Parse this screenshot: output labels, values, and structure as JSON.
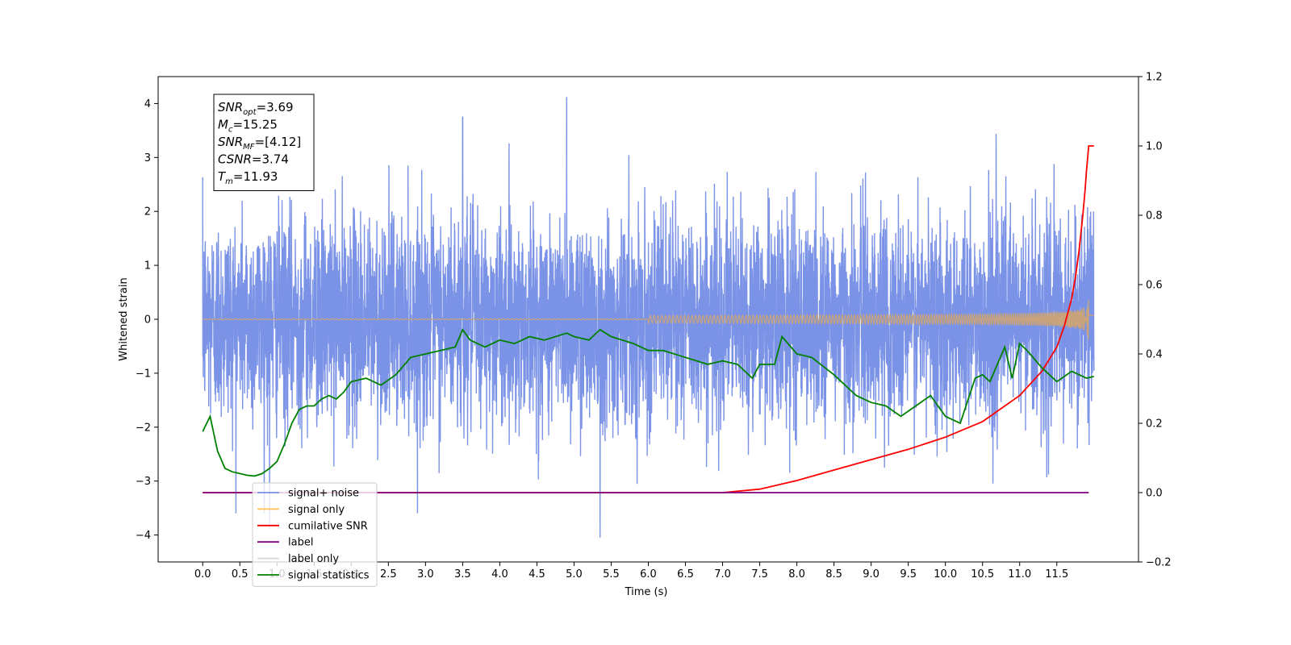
{
  "chart_data": {
    "type": "line",
    "xlabel": "Time (s)",
    "ylabel": "Whitened strain",
    "xlim": [
      -0.6,
      12.6
    ],
    "ylim": [
      -4.5,
      4.5
    ],
    "y2lim": [
      -0.2,
      1.2
    ],
    "xticks": [
      "0.0",
      "0.5",
      "1.0",
      "1.5",
      "2.0",
      "2.5",
      "3.0",
      "3.5",
      "4.0",
      "4.5",
      "5.0",
      "5.5",
      "6.0",
      "6.5",
      "7.0",
      "7.5",
      "8.0",
      "8.5",
      "9.0",
      "9.5",
      "10.0",
      "10.5",
      "11.0",
      "11.5"
    ],
    "yticks": [
      "−4",
      "−3",
      "−2",
      "−1",
      "0",
      "1",
      "2",
      "3",
      "4"
    ],
    "y2ticks": [
      "−0.2",
      "0.0",
      "0.2",
      "0.4",
      "0.6",
      "0.8",
      "1.0",
      "1.2"
    ],
    "grid": false,
    "legend_position": "lower-left",
    "annotation_box": [
      {
        "base": "SNR",
        "sub": "opt",
        "value": "=3.69"
      },
      {
        "base": "M",
        "sub": "c",
        "value": "=15.25"
      },
      {
        "base": "SNR",
        "sub": "MF",
        "value": "=[4.12]"
      },
      {
        "base": "CSNR",
        "sub": "",
        "value": "=3.74"
      },
      {
        "base": "T",
        "sub": "m",
        "value": "=11.93"
      }
    ],
    "series": [
      {
        "name": "signal+ noise",
        "color": "#7b93e6",
        "axis": "left",
        "x_range": [
          0,
          12.0
        ],
        "amplitude_typical": 2.0,
        "peaks": [
          [
            4.9,
            4.12
          ],
          [
            5.35,
            -4.05
          ],
          [
            3.5,
            3.75
          ],
          [
            0.9,
            -3.9
          ]
        ]
      },
      {
        "name": "signal only",
        "color": "#ffc04d",
        "axis": "left",
        "x_range": [
          0,
          12.0
        ],
        "peak_time": 11.93,
        "peak_amplitude": 0.75
      },
      {
        "name": "cumilative SNR",
        "color": "#ff0000",
        "axis": "right",
        "x": [
          0,
          7.0,
          7.5,
          8.0,
          8.5,
          9.0,
          9.5,
          10.0,
          10.5,
          11.0,
          11.3,
          11.5,
          11.6,
          11.7,
          11.75,
          11.8,
          11.85,
          11.88,
          11.9,
          11.93,
          12.0
        ],
        "y": [
          0.0,
          0.0,
          0.01,
          0.035,
          0.065,
          0.095,
          0.125,
          0.16,
          0.205,
          0.28,
          0.35,
          0.42,
          0.48,
          0.56,
          0.62,
          0.7,
          0.8,
          0.87,
          0.93,
          1.0,
          1.0
        ]
      },
      {
        "name": "label",
        "color": "#800080",
        "axis": "right",
        "x": [
          0,
          11.93
        ],
        "y": [
          0.0,
          0.0
        ]
      },
      {
        "name": "label only",
        "color": "#d9d9d9",
        "axis": "right",
        "x": [],
        "y": []
      },
      {
        "name": "signal statistics",
        "color": "#008000",
        "axis": "right",
        "x": [
          0,
          0.1,
          0.2,
          0.3,
          0.4,
          0.5,
          0.6,
          0.7,
          0.8,
          0.9,
          1.0,
          1.1,
          1.2,
          1.3,
          1.4,
          1.5,
          1.6,
          1.7,
          1.8,
          1.9,
          2.0,
          2.2,
          2.4,
          2.6,
          2.8,
          3.0,
          3.2,
          3.4,
          3.5,
          3.6,
          3.8,
          4.0,
          4.2,
          4.4,
          4.6,
          4.9,
          5.0,
          5.2,
          5.35,
          5.5,
          5.8,
          6.0,
          6.2,
          6.5,
          6.8,
          7.0,
          7.2,
          7.4,
          7.5,
          7.7,
          7.8,
          8.0,
          8.2,
          8.5,
          8.8,
          9.0,
          9.2,
          9.4,
          9.6,
          9.8,
          10.0,
          10.2,
          10.4,
          10.5,
          10.6,
          10.8,
          10.9,
          11.0,
          11.1,
          11.3,
          11.5,
          11.7,
          11.9,
          12.0
        ],
        "y": [
          0.176,
          0.22,
          0.12,
          0.07,
          0.06,
          0.055,
          0.05,
          0.048,
          0.055,
          0.07,
          0.09,
          0.14,
          0.2,
          0.24,
          0.25,
          0.25,
          0.27,
          0.28,
          0.27,
          0.29,
          0.32,
          0.33,
          0.31,
          0.34,
          0.39,
          0.4,
          0.41,
          0.42,
          0.47,
          0.44,
          0.42,
          0.44,
          0.43,
          0.45,
          0.44,
          0.46,
          0.45,
          0.44,
          0.47,
          0.45,
          0.43,
          0.41,
          0.41,
          0.39,
          0.37,
          0.38,
          0.37,
          0.33,
          0.37,
          0.37,
          0.45,
          0.4,
          0.39,
          0.34,
          0.28,
          0.26,
          0.25,
          0.22,
          0.25,
          0.28,
          0.22,
          0.2,
          0.33,
          0.34,
          0.32,
          0.42,
          0.33,
          0.43,
          0.41,
          0.36,
          0.32,
          0.35,
          0.33,
          0.335
        ]
      }
    ]
  }
}
